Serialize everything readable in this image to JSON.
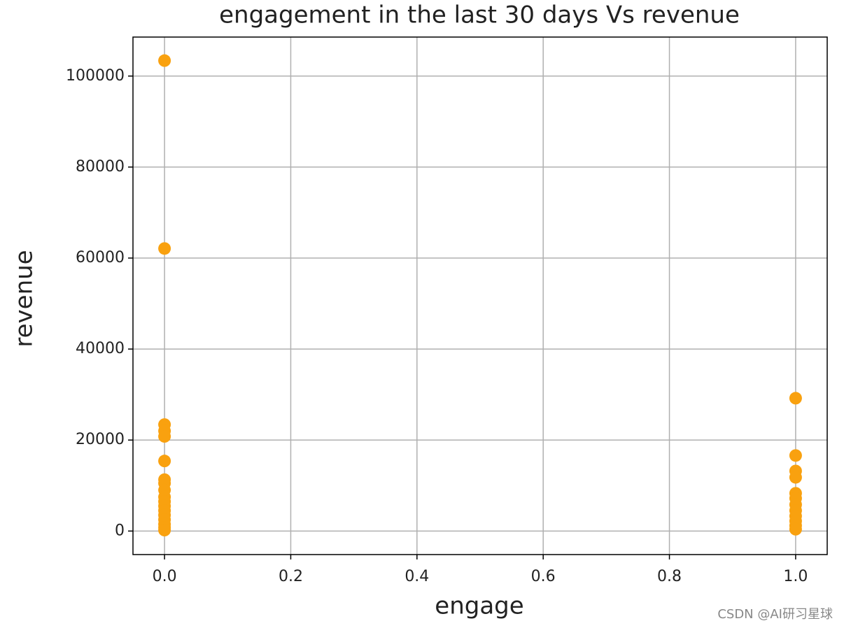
{
  "chart_data": {
    "type": "scatter",
    "title": "engagement in the last 30 days Vs revenue",
    "x_label": "engage",
    "y_label": "revenue",
    "x": [
      0,
      0,
      0,
      0,
      0,
      0,
      0,
      0,
      0,
      0,
      0,
      0,
      0,
      0,
      0,
      0,
      0,
      0,
      1,
      1,
      1,
      1,
      1,
      1,
      1,
      1,
      1,
      1,
      1,
      1
    ],
    "values": [
      103400,
      62100,
      23400,
      22000,
      20800,
      15400,
      11300,
      10500,
      9000,
      7500,
      6500,
      5500,
      4500,
      3500,
      2500,
      1500,
      800,
      200,
      29200,
      16600,
      13200,
      11800,
      8300,
      7200,
      5800,
      4500,
      3300,
      2200,
      1200,
      400
    ],
    "color": "#f9a10f",
    "xlim": [
      -0.05,
      1.05
    ],
    "xticks": [
      {
        "value": 0,
        "label": "0.0"
      },
      0.2,
      0.4,
      0.6,
      0.8,
      {
        "value": 1,
        "label": "1.0"
      }
    ],
    "ylim": [
      -5170,
      108570
    ],
    "yticks": [
      0,
      20000,
      40000,
      60000,
      80000,
      100000
    ],
    "grid": true,
    "watermark": "CSDN @AI研习星球"
  }
}
